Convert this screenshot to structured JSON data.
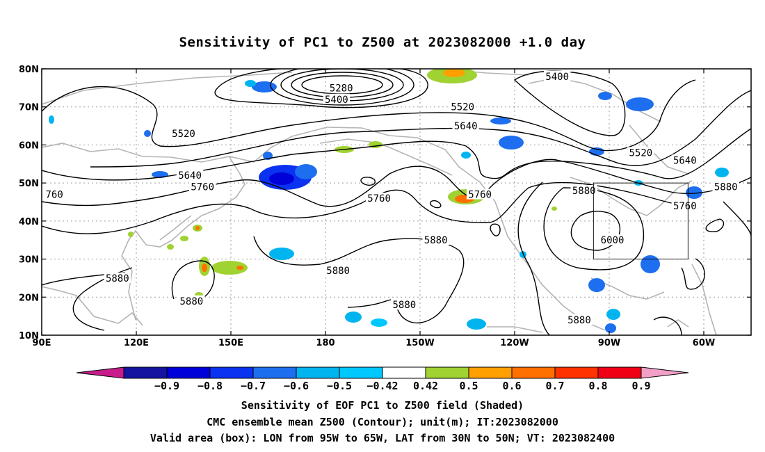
{
  "title": "Sensitivity of PC1 to Z500 at 2023082000 +1.0 day",
  "axes": {
    "x_ticks": [
      {
        "lon": 90,
        "label": "90E"
      },
      {
        "lon": 120,
        "label": "120E"
      },
      {
        "lon": 150,
        "label": "150E"
      },
      {
        "lon": 180,
        "label": "180"
      },
      {
        "lon": 210,
        "label": "150W"
      },
      {
        "lon": 240,
        "label": "120W"
      },
      {
        "lon": 270,
        "label": "90W"
      },
      {
        "lon": 300,
        "label": "60W"
      }
    ],
    "y_ticks": [
      {
        "lat": 80,
        "label": "80N"
      },
      {
        "lat": 70,
        "label": "70N"
      },
      {
        "lat": 60,
        "label": "60N"
      },
      {
        "lat": 50,
        "label": "50N"
      },
      {
        "lat": 40,
        "label": "40N"
      },
      {
        "lat": 30,
        "label": "30N"
      },
      {
        "lat": 20,
        "label": "20N"
      },
      {
        "lat": 10,
        "label": "10N"
      }
    ],
    "lon_range": [
      90,
      315
    ],
    "lat_range": [
      10,
      80
    ],
    "grid": true
  },
  "contour_labels": [
    {
      "text": "5280",
      "lon": 185,
      "lat": 75
    },
    {
      "text": "5400",
      "lon": 183.5,
      "lat": 72
    },
    {
      "text": "5400",
      "lon": 253.5,
      "lat": 78
    },
    {
      "text": "5520",
      "lon": 135,
      "lat": 63
    },
    {
      "text": "5520",
      "lon": 223.5,
      "lat": 70
    },
    {
      "text": "5520",
      "lon": 280,
      "lat": 58
    },
    {
      "text": "5640",
      "lon": 224.5,
      "lat": 65
    },
    {
      "text": "5640",
      "lon": 137,
      "lat": 52
    },
    {
      "text": "5640",
      "lon": 294,
      "lat": 56
    },
    {
      "text": "5760",
      "lon": 141,
      "lat": 49
    },
    {
      "text": "5760",
      "lon": 197,
      "lat": 46
    },
    {
      "text": "5760",
      "lon": 229,
      "lat": 47
    },
    {
      "text": "5760",
      "lon": 294,
      "lat": 44
    },
    {
      "text": "760",
      "lon": 94,
      "lat": 47
    },
    {
      "text": "5880",
      "lon": 262,
      "lat": 48
    },
    {
      "text": "5880",
      "lon": 307,
      "lat": 49
    },
    {
      "text": "5880",
      "lon": 215,
      "lat": 35
    },
    {
      "text": "5880",
      "lon": 184,
      "lat": 27
    },
    {
      "text": "5880",
      "lon": 114,
      "lat": 25
    },
    {
      "text": "5880",
      "lon": 137.5,
      "lat": 19
    },
    {
      "text": "5880",
      "lon": 205,
      "lat": 18
    },
    {
      "text": "5880",
      "lon": 260.5,
      "lat": 14
    },
    {
      "text": "6000",
      "lon": 271,
      "lat": 35
    }
  ],
  "valid_box": {
    "lon1": 265,
    "lon2": 295,
    "lat1": 30,
    "lat2": 50
  },
  "colorbar": {
    "colors": [
      "#c81c8c",
      "#1414a0",
      "#0000d8",
      "#0a32f0",
      "#1e6ef0",
      "#00b4f0",
      "#00c8ff",
      "#ffffff",
      "#a0d232",
      "#ffa000",
      "#ff7000",
      "#ff3200",
      "#f00014",
      "#f2a0c8"
    ],
    "labels": [
      "−0.9",
      "−0.8",
      "−0.7",
      "−0.6",
      "−0.5",
      "−0.42",
      "0.42",
      "0.5",
      "0.6",
      "0.7",
      "0.8",
      "0.9"
    ]
  },
  "footer": {
    "line1": "Sensitivity of EOF PC1 to Z500 field (Shaded)",
    "line2": "CMC ensemble mean Z500 (Contour); unit(m); IT:2023082000",
    "line3": "Valid area (box): LON from 95W to 65W, LAT from 30N to 50N; VT: 2023082400"
  }
}
